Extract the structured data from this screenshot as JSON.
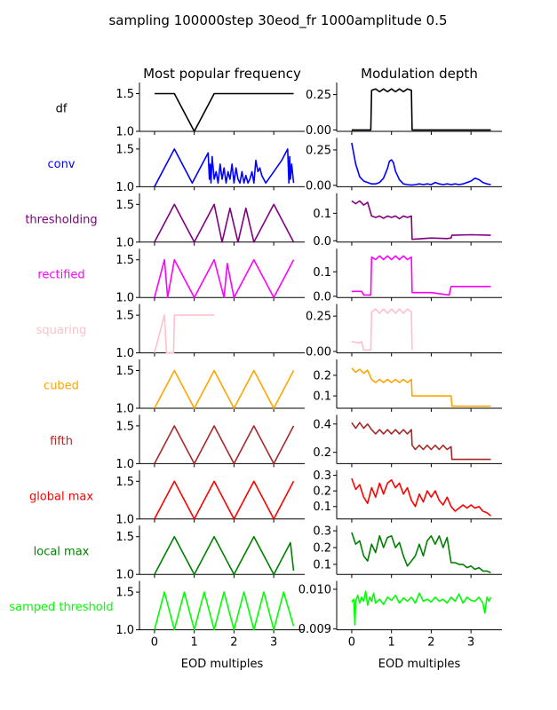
{
  "figure": {
    "suptitle": "sampling 100000step 30eod_fr 1000amplitude 0.5",
    "col_titles": [
      "Most popular frequency",
      "Modulation depth"
    ],
    "xlabel": "EOD multiples"
  },
  "chart_data": [
    {
      "type": "line",
      "row_label": "df",
      "color": "#000000",
      "panel": "frequency",
      "ylim": [
        1.0,
        1.6
      ],
      "yticks": [
        "1.0",
        "1.5"
      ],
      "xlim": [
        -0.2,
        3.6
      ],
      "xticks": [
        "0",
        "1",
        "2",
        "3"
      ],
      "x": [
        0,
        0.5,
        1.0,
        1.5,
        3.5
      ],
      "y": [
        1.5,
        1.5,
        1.0,
        1.5,
        1.5
      ]
    },
    {
      "type": "line",
      "row_label": "df",
      "color": "#000000",
      "panel": "modulation",
      "ylim": [
        -0.01,
        0.31
      ],
      "yticks": [
        "0.00",
        "0.25"
      ],
      "xlim": [
        -0.2,
        3.6
      ],
      "xticks": [
        "0",
        "1",
        "2",
        "3"
      ],
      "x": [
        0,
        0.48,
        0.5,
        0.6,
        0.7,
        0.8,
        0.9,
        1.0,
        1.1,
        1.2,
        1.3,
        1.4,
        1.5,
        1.52,
        3.5
      ],
      "y": [
        0,
        0,
        0.28,
        0.29,
        0.27,
        0.29,
        0.27,
        0.29,
        0.27,
        0.29,
        0.27,
        0.29,
        0.28,
        0,
        0
      ]
    },
    {
      "type": "line",
      "row_label": "conv",
      "color": "#0000ff",
      "panel": "frequency",
      "ylim": [
        1.0,
        1.6
      ],
      "yticks": [
        "1.0",
        "1.5"
      ],
      "xlim": [
        -0.2,
        3.6
      ],
      "xticks": [
        "0",
        "1",
        "2",
        "3"
      ],
      "x": [
        0,
        0.5,
        0.95,
        1.2,
        1.35,
        1.38,
        1.4,
        1.42,
        1.45,
        1.5,
        1.55,
        1.6,
        1.65,
        1.7,
        1.75,
        1.8,
        1.85,
        1.9,
        1.95,
        2.0,
        2.05,
        2.1,
        2.15,
        2.2,
        2.25,
        2.3,
        2.35,
        2.4,
        2.45,
        2.5,
        2.55,
        2.6,
        2.65,
        2.7,
        2.8,
        3.0,
        3.2,
        3.35,
        3.38,
        3.4,
        3.42,
        3.45,
        3.5
      ],
      "y": [
        1.0,
        1.5,
        1.05,
        1.3,
        1.45,
        1.1,
        1.3,
        1.05,
        1.4,
        1.1,
        1.2,
        1.05,
        1.3,
        1.1,
        1.25,
        1.05,
        1.2,
        1.1,
        1.3,
        1.05,
        1.25,
        1.1,
        1.05,
        1.2,
        1.05,
        1.15,
        1.05,
        1.1,
        1.2,
        1.05,
        1.35,
        1.2,
        1.25,
        1.15,
        1.05,
        1.2,
        1.35,
        1.5,
        1.05,
        1.4,
        1.1,
        1.3,
        1.05
      ]
    },
    {
      "type": "line",
      "row_label": "conv",
      "color": "#0000ff",
      "panel": "modulation",
      "ylim": [
        -0.01,
        0.31
      ],
      "yticks": [
        "0.00",
        "0.25"
      ],
      "xlim": [
        -0.2,
        3.6
      ],
      "xticks": [
        "0",
        "1",
        "2",
        "3"
      ],
      "x": [
        0,
        0.1,
        0.2,
        0.3,
        0.4,
        0.5,
        0.6,
        0.7,
        0.8,
        0.9,
        0.95,
        1.0,
        1.05,
        1.1,
        1.2,
        1.3,
        1.4,
        1.5,
        1.6,
        1.7,
        1.8,
        1.9,
        2.0,
        2.1,
        2.2,
        2.3,
        2.4,
        2.5,
        2.6,
        2.7,
        2.8,
        2.9,
        3.0,
        3.1,
        3.2,
        3.3,
        3.4,
        3.5
      ],
      "y": [
        0.3,
        0.15,
        0.06,
        0.03,
        0.02,
        0.01,
        0.01,
        0.02,
        0.05,
        0.12,
        0.17,
        0.18,
        0.16,
        0.1,
        0.04,
        0.01,
        0.005,
        0.002,
        0.005,
        0.01,
        0.005,
        0.01,
        0.005,
        0.02,
        0.01,
        0.005,
        0.01,
        0.005,
        0.01,
        0.005,
        0.01,
        0.02,
        0.03,
        0.05,
        0.04,
        0.02,
        0.01,
        0.005
      ]
    },
    {
      "type": "line",
      "row_label": "thresholding",
      "color": "#800080",
      "panel": "frequency",
      "ylim": [
        1.0,
        1.6
      ],
      "yticks": [
        "1.0",
        "1.5"
      ],
      "xlim": [
        -0.2,
        3.6
      ],
      "xticks": [
        "0",
        "1",
        "2",
        "3"
      ],
      "x": [
        0,
        0.5,
        1.0,
        1.5,
        1.7,
        1.9,
        2.1,
        2.3,
        2.5,
        3.0,
        3.5
      ],
      "y": [
        1.0,
        1.5,
        1.0,
        1.5,
        1.0,
        1.45,
        1.0,
        1.45,
        1.0,
        1.5,
        1.0
      ]
    },
    {
      "type": "line",
      "row_label": "thresholding",
      "color": "#800080",
      "panel": "modulation",
      "ylim": [
        -0.005,
        0.16
      ],
      "yticks": [
        "0.0",
        "0.1"
      ],
      "xlim": [
        -0.2,
        3.6
      ],
      "xticks": [
        "0",
        "1",
        "2",
        "3"
      ],
      "x": [
        0,
        0.1,
        0.2,
        0.3,
        0.4,
        0.5,
        0.6,
        0.7,
        0.8,
        0.9,
        1.0,
        1.1,
        1.2,
        1.3,
        1.4,
        1.5,
        1.52,
        2.0,
        2.4,
        2.5,
        2.52,
        3.0,
        3.5
      ],
      "y": [
        0.145,
        0.135,
        0.145,
        0.13,
        0.14,
        0.09,
        0.085,
        0.09,
        0.082,
        0.09,
        0.085,
        0.09,
        0.08,
        0.09,
        0.085,
        0.09,
        0.005,
        0.01,
        0.008,
        0.01,
        0.02,
        0.022,
        0.02
      ]
    },
    {
      "type": "line",
      "row_label": "rectified",
      "color": "#ff00ff",
      "panel": "frequency",
      "ylim": [
        1.0,
        1.6
      ],
      "yticks": [
        "1.0",
        "1.5"
      ],
      "xlim": [
        -0.2,
        3.6
      ],
      "xticks": [
        "0",
        "1",
        "2",
        "3"
      ],
      "x": [
        0,
        0.25,
        0.33,
        0.5,
        1.0,
        1.5,
        1.75,
        1.83,
        2.0,
        2.5,
        3.0,
        3.5
      ],
      "y": [
        1.0,
        1.5,
        1.0,
        1.5,
        1.0,
        1.5,
        1.0,
        1.45,
        1.0,
        1.5,
        1.0,
        1.5
      ]
    },
    {
      "type": "line",
      "row_label": "rectified",
      "color": "#ff00ff",
      "panel": "modulation",
      "ylim": [
        -0.005,
        0.18
      ],
      "yticks": [
        "0.0",
        "0.1"
      ],
      "xlim": [
        -0.2,
        3.6
      ],
      "xticks": [
        "0",
        "1",
        "2",
        "3"
      ],
      "x": [
        0,
        0.25,
        0.3,
        0.48,
        0.5,
        0.6,
        0.7,
        0.8,
        0.9,
        1.0,
        1.1,
        1.2,
        1.3,
        1.4,
        1.5,
        1.52,
        2.0,
        2.45,
        2.5,
        3.0,
        3.5
      ],
      "y": [
        0.02,
        0.02,
        0.005,
        0.005,
        0.16,
        0.15,
        0.165,
        0.15,
        0.165,
        0.15,
        0.165,
        0.15,
        0.165,
        0.15,
        0.16,
        0.015,
        0.015,
        0.005,
        0.04,
        0.04,
        0.04
      ]
    },
    {
      "type": "line",
      "row_label": "squaring",
      "color": "#ffc0cb",
      "panel": "frequency",
      "ylim": [
        1.0,
        1.6
      ],
      "yticks": [
        "1.0",
        "1.5"
      ],
      "xlim": [
        -0.2,
        3.6
      ],
      "xticks": [
        "0",
        "1",
        "2",
        "3"
      ],
      "x": [
        0,
        0.25,
        0.3,
        0.48,
        0.5,
        1.5
      ],
      "y": [
        1.0,
        1.5,
        1.0,
        1.0,
        1.5,
        1.5
      ]
    },
    {
      "type": "line",
      "row_label": "squaring",
      "color": "#ffc0cb",
      "panel": "modulation",
      "ylim": [
        -0.01,
        0.31
      ],
      "yticks": [
        "0.00",
        "0.25"
      ],
      "xlim": [
        -0.2,
        3.6
      ],
      "xticks": [
        "0",
        "1",
        "2",
        "3"
      ],
      "x": [
        0,
        0.2,
        0.25,
        0.3,
        0.48,
        0.5,
        0.6,
        0.7,
        0.8,
        0.9,
        1.0,
        1.1,
        1.2,
        1.3,
        1.4,
        1.5,
        1.52
      ],
      "y": [
        0.07,
        0.06,
        0.07,
        0.01,
        0.01,
        0.28,
        0.3,
        0.27,
        0.3,
        0.27,
        0.3,
        0.27,
        0.3,
        0.27,
        0.3,
        0.28,
        0.01
      ]
    },
    {
      "type": "line",
      "row_label": "cubed",
      "color": "#ffa500",
      "panel": "frequency",
      "ylim": [
        1.0,
        1.6
      ],
      "yticks": [
        "1.0",
        "1.5"
      ],
      "xlim": [
        -0.2,
        3.6
      ],
      "xticks": [
        "0",
        "1",
        "2",
        "3"
      ],
      "x": [
        0,
        0.5,
        1.0,
        1.5,
        2.0,
        2.5,
        3.0,
        3.5
      ],
      "y": [
        1.0,
        1.5,
        1.0,
        1.5,
        1.0,
        1.5,
        1.0,
        1.5
      ]
    },
    {
      "type": "line",
      "row_label": "cubed",
      "color": "#ffa500",
      "panel": "modulation",
      "ylim": [
        0.04,
        0.26
      ],
      "yticks": [
        "0.1",
        "0.2"
      ],
      "xlim": [
        -0.2,
        3.6
      ],
      "xticks": [
        "0",
        "1",
        "2",
        "3"
      ],
      "x": [
        0,
        0.1,
        0.2,
        0.3,
        0.4,
        0.5,
        0.6,
        0.7,
        0.8,
        0.9,
        1.0,
        1.1,
        1.2,
        1.3,
        1.4,
        1.5,
        1.52,
        2.0,
        2.5,
        2.52,
        3.0,
        3.5
      ],
      "y": [
        0.235,
        0.215,
        0.23,
        0.21,
        0.225,
        0.18,
        0.165,
        0.18,
        0.165,
        0.18,
        0.165,
        0.18,
        0.165,
        0.18,
        0.165,
        0.18,
        0.1,
        0.1,
        0.1,
        0.05,
        0.05,
        0.05
      ]
    },
    {
      "type": "line",
      "row_label": "fifth",
      "color": "#a52a2a",
      "panel": "frequency",
      "ylim": [
        1.0,
        1.6
      ],
      "yticks": [
        "1.0",
        "1.5"
      ],
      "xlim": [
        -0.2,
        3.6
      ],
      "xticks": [
        "0",
        "1",
        "2",
        "3"
      ],
      "x": [
        0,
        0.5,
        1.0,
        1.5,
        2.0,
        2.5,
        3.0,
        3.5
      ],
      "y": [
        1.0,
        1.5,
        1.0,
        1.5,
        1.0,
        1.5,
        1.0,
        1.5
      ]
    },
    {
      "type": "line",
      "row_label": "fifth",
      "color": "#a52a2a",
      "panel": "modulation",
      "ylim": [
        0.12,
        0.44
      ],
      "yticks": [
        "0.2",
        "0.4"
      ],
      "xlim": [
        -0.2,
        3.6
      ],
      "xticks": [
        "0",
        "1",
        "2",
        "3"
      ],
      "x": [
        0,
        0.1,
        0.2,
        0.3,
        0.4,
        0.5,
        0.6,
        0.7,
        0.8,
        0.9,
        1.0,
        1.1,
        1.2,
        1.3,
        1.4,
        1.5,
        1.52,
        1.6,
        1.7,
        1.8,
        1.9,
        2.0,
        2.1,
        2.2,
        2.3,
        2.4,
        2.5,
        2.52,
        3.0,
        3.5
      ],
      "y": [
        0.41,
        0.37,
        0.41,
        0.37,
        0.4,
        0.36,
        0.33,
        0.36,
        0.33,
        0.36,
        0.33,
        0.36,
        0.33,
        0.36,
        0.33,
        0.36,
        0.25,
        0.22,
        0.25,
        0.22,
        0.25,
        0.22,
        0.25,
        0.22,
        0.25,
        0.22,
        0.24,
        0.15,
        0.15,
        0.15
      ]
    },
    {
      "type": "line",
      "row_label": "global max",
      "color": "#ff0000",
      "panel": "frequency",
      "ylim": [
        1.0,
        1.6
      ],
      "yticks": [
        "1.0",
        "1.5"
      ],
      "xlim": [
        -0.2,
        3.6
      ],
      "xticks": [
        "0",
        "1",
        "2",
        "3"
      ],
      "x": [
        0,
        0.5,
        1.0,
        1.5,
        2.0,
        2.5,
        3.0,
        3.5
      ],
      "y": [
        1.0,
        1.5,
        1.0,
        1.5,
        1.0,
        1.5,
        1.0,
        1.5
      ]
    },
    {
      "type": "line",
      "row_label": "global max",
      "color": "#ff0000",
      "panel": "modulation",
      "ylim": [
        0.02,
        0.31
      ],
      "yticks": [
        "0.1",
        "0.2",
        "0.3"
      ],
      "xlim": [
        -0.2,
        3.6
      ],
      "xticks": [
        "0",
        "1",
        "2",
        "3"
      ],
      "x": [
        0,
        0.1,
        0.2,
        0.3,
        0.4,
        0.5,
        0.6,
        0.7,
        0.8,
        0.9,
        1.0,
        1.1,
        1.2,
        1.3,
        1.4,
        1.5,
        1.6,
        1.7,
        1.8,
        1.9,
        2.0,
        2.1,
        2.2,
        2.3,
        2.4,
        2.5,
        2.6,
        2.7,
        2.8,
        2.9,
        3.0,
        3.1,
        3.2,
        3.3,
        3.4,
        3.5
      ],
      "y": [
        0.28,
        0.21,
        0.24,
        0.16,
        0.12,
        0.22,
        0.16,
        0.25,
        0.18,
        0.25,
        0.27,
        0.22,
        0.25,
        0.18,
        0.22,
        0.14,
        0.1,
        0.18,
        0.13,
        0.2,
        0.16,
        0.2,
        0.14,
        0.11,
        0.16,
        0.1,
        0.07,
        0.09,
        0.11,
        0.09,
        0.11,
        0.09,
        0.1,
        0.07,
        0.06,
        0.04
      ]
    },
    {
      "type": "line",
      "row_label": "local max",
      "color": "#008000",
      "panel": "frequency",
      "ylim": [
        1.0,
        1.6
      ],
      "yticks": [
        "1.0",
        "1.5"
      ],
      "xlim": [
        -0.2,
        3.6
      ],
      "xticks": [
        "0",
        "1",
        "2",
        "3"
      ],
      "x": [
        0,
        0.5,
        1.0,
        1.5,
        2.0,
        2.5,
        3.0,
        3.42,
        3.5
      ],
      "y": [
        1.0,
        1.5,
        1.0,
        1.5,
        1.0,
        1.5,
        1.0,
        1.42,
        1.05
      ]
    },
    {
      "type": "line",
      "row_label": "local max",
      "color": "#008000",
      "panel": "modulation",
      "ylim": [
        0.04,
        0.31
      ],
      "yticks": [
        "0.1",
        "0.2",
        "0.3"
      ],
      "xlim": [
        -0.2,
        3.6
      ],
      "xticks": [
        "0",
        "1",
        "2",
        "3"
      ],
      "x": [
        0,
        0.1,
        0.2,
        0.3,
        0.4,
        0.5,
        0.6,
        0.7,
        0.8,
        0.9,
        1.0,
        1.1,
        1.2,
        1.3,
        1.4,
        1.5,
        1.6,
        1.7,
        1.8,
        1.9,
        2.0,
        2.1,
        2.2,
        2.3,
        2.4,
        2.5,
        2.6,
        2.7,
        2.8,
        2.9,
        3.0,
        3.1,
        3.2,
        3.3,
        3.4,
        3.5
      ],
      "y": [
        0.29,
        0.22,
        0.24,
        0.15,
        0.12,
        0.22,
        0.17,
        0.27,
        0.2,
        0.26,
        0.27,
        0.2,
        0.23,
        0.15,
        0.09,
        0.12,
        0.15,
        0.22,
        0.15,
        0.24,
        0.27,
        0.22,
        0.27,
        0.2,
        0.26,
        0.11,
        0.11,
        0.1,
        0.1,
        0.08,
        0.09,
        0.07,
        0.08,
        0.06,
        0.06,
        0.05
      ]
    },
    {
      "type": "line",
      "row_label": "samped threshold",
      "color": "#00ff00",
      "panel": "frequency",
      "ylim": [
        1.0,
        1.6
      ],
      "yticks": [
        "1.0",
        "1.5"
      ],
      "xlim": [
        -0.2,
        3.6
      ],
      "xticks": [
        "0",
        "1",
        "2",
        "3"
      ],
      "x": [
        0,
        0.25,
        0.5,
        0.75,
        1.0,
        1.25,
        1.5,
        1.75,
        2.0,
        2.25,
        2.5,
        2.75,
        3.0,
        3.25,
        3.5
      ],
      "y": [
        1.0,
        1.5,
        1.0,
        1.5,
        1.0,
        1.5,
        1.0,
        1.5,
        1.0,
        1.5,
        1.0,
        1.5,
        1.0,
        1.5,
        1.05
      ]
    },
    {
      "type": "line",
      "row_label": "samped threshold",
      "color": "#00ff00",
      "panel": "modulation",
      "ylim": [
        0.00898,
        0.01012
      ],
      "yticks": [
        "0.009",
        "0.010"
      ],
      "xlim": [
        -0.2,
        3.6
      ],
      "xticks": [
        "0",
        "1",
        "2",
        "3"
      ],
      "x": [
        0,
        0.05,
        0.08,
        0.1,
        0.15,
        0.2,
        0.25,
        0.3,
        0.35,
        0.4,
        0.45,
        0.5,
        0.55,
        0.6,
        0.7,
        0.8,
        0.9,
        1.0,
        1.1,
        1.2,
        1.3,
        1.4,
        1.5,
        1.6,
        1.7,
        1.8,
        1.9,
        2.0,
        2.1,
        2.2,
        2.3,
        2.4,
        2.5,
        2.6,
        2.7,
        2.8,
        2.9,
        3.0,
        3.1,
        3.2,
        3.3,
        3.35,
        3.4,
        3.45,
        3.5
      ],
      "y": [
        0.00968,
        0.00975,
        0.0091,
        0.0097,
        0.00985,
        0.00965,
        0.0098,
        0.0097,
        0.00995,
        0.0096,
        0.0098,
        0.0097,
        0.0099,
        0.00965,
        0.00975,
        0.00962,
        0.0098,
        0.00972,
        0.00985,
        0.00965,
        0.00978,
        0.0097,
        0.0098,
        0.00965,
        0.0099,
        0.0097,
        0.00975,
        0.00968,
        0.0098,
        0.0097,
        0.00975,
        0.00965,
        0.0098,
        0.0097,
        0.00988,
        0.00965,
        0.0098,
        0.00972,
        0.0097,
        0.0098,
        0.00965,
        0.0094,
        0.0098,
        0.0097,
        0.0098
      ]
    }
  ]
}
